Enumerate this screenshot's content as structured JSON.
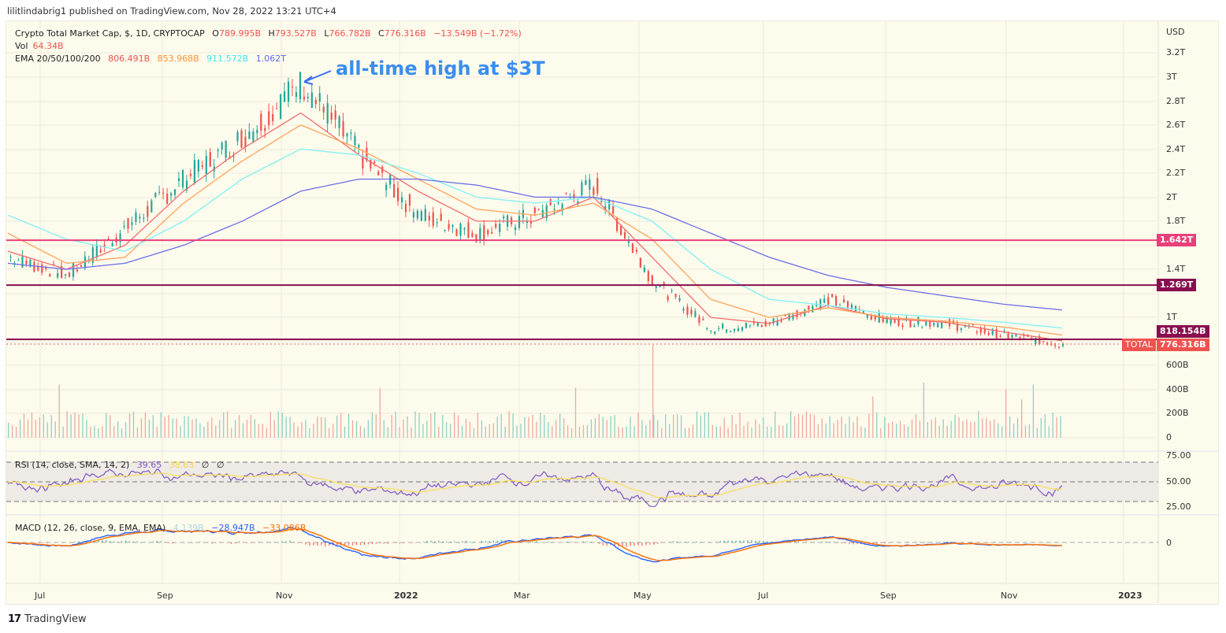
{
  "publish_line": "lilitlindabrig1 published on TradingView.com, Nov 28, 2022 13:21 UTC+4",
  "legend": {
    "symbol": "Crypto Total Market Cap, $, 1D, CRYPTOCAP",
    "open_label": "O",
    "open": "789.995B",
    "high_label": "H",
    "high": "793.527B",
    "low_label": "L",
    "low": "766.782B",
    "close_label": "C",
    "close": "776.316B",
    "change": "−13.549B (−1.72%)",
    "vol_label": "Vol",
    "vol": "64.34B",
    "ema_label": "EMA 20/50/100/200",
    "ema20": "806.491B",
    "ema50": "853.968B",
    "ema100": "911.572B",
    "ema200": "1.062T"
  },
  "rsi_legend": {
    "label": "RSI (14, close, SMA, 14, 2)",
    "rsi": "39.65",
    "sma": "38.63",
    "v3": "∅",
    "v4": "∅"
  },
  "macd_legend": {
    "label": "MACD (12, 26, close, 9, EMA, EMA)",
    "hist": "4.139B",
    "macd": "−28.947B",
    "signal": "−33.086B"
  },
  "annotation": "all-time high at $3T",
  "price_axis": {
    "currency": "USD",
    "ticks": [
      "3.2T",
      "3T",
      "2.8T",
      "2.6T",
      "2.4T",
      "2.2T",
      "2T",
      "1.8T",
      "1.4T",
      "1T",
      "600B",
      "400B",
      "200B",
      "0"
    ]
  },
  "rsi_axis": [
    "75.00",
    "50.00",
    "25.00"
  ],
  "macd_axis": [
    "0"
  ],
  "time_axis": [
    "Jul",
    "Sep",
    "Nov",
    "2022",
    "Mar",
    "May",
    "Jul",
    "Sep",
    "Nov",
    "2023"
  ],
  "price_tags": {
    "level1": "1.642T",
    "level2": "1.269T",
    "level3": "818.154B",
    "symbol_tag": "TOTAL",
    "last": "776.316B"
  },
  "colors": {
    "up": "#26a69a",
    "down": "#ef5350",
    "ema20": "#f26b6b",
    "ema50": "#ffa25a",
    "ema100": "#7ff0f5",
    "ema200": "#6a6ee8",
    "level_pink": "#e8407a",
    "level_maroon": "#880e4f",
    "rsi": "#7e57c2",
    "rsi_sma": "#f9e05a",
    "macd": "#2962ff",
    "signal": "#ff6d00"
  },
  "footer": {
    "brand": "TradingView"
  },
  "chart_data": {
    "type": "line",
    "title": "Crypto Total Market Cap, $, 1D, CRYPTOCAP",
    "xlabel": "",
    "ylabel": "USD",
    "ylim": [
      0,
      3200
    ],
    "y_unit": "billions USD",
    "x": [
      "2021-06",
      "2021-07",
      "2021-08",
      "2021-09",
      "2021-10",
      "2021-11",
      "2021-12",
      "2022-01",
      "2022-02",
      "2022-03",
      "2022-04",
      "2022-05",
      "2022-06",
      "2022-07",
      "2022-08",
      "2022-09",
      "2022-10",
      "2022-11",
      "2022-11-28"
    ],
    "series": [
      {
        "name": "Total Market Cap (close, approx)",
        "values": [
          1500,
          1350,
          1750,
          2150,
          2500,
          2950,
          2350,
          1850,
          1700,
          1850,
          2100,
          1300,
          900,
          950,
          1150,
          970,
          950,
          850,
          776
        ]
      },
      {
        "name": "EMA 20",
        "values": [
          1550,
          1400,
          1600,
          2050,
          2400,
          2700,
          2350,
          2050,
          1800,
          1800,
          2000,
          1500,
          1000,
          950,
          1100,
          990,
          960,
          880,
          806
        ]
      },
      {
        "name": "EMA 50",
        "values": [
          1700,
          1450,
          1500,
          1950,
          2300,
          2600,
          2400,
          2150,
          1900,
          1850,
          1950,
          1650,
          1150,
          1000,
          1080,
          1000,
          970,
          920,
          854
        ]
      },
      {
        "name": "EMA 100",
        "values": [
          1850,
          1650,
          1550,
          1800,
          2150,
          2400,
          2350,
          2200,
          2000,
          1950,
          2000,
          1800,
          1400,
          1150,
          1100,
          1030,
          1000,
          960,
          912
        ]
      },
      {
        "name": "EMA 200",
        "values": [
          1450,
          1400,
          1450,
          1600,
          1800,
          2050,
          2150,
          2150,
          2100,
          2000,
          2000,
          1900,
          1700,
          1500,
          1350,
          1250,
          1180,
          1110,
          1062
        ]
      }
    ],
    "horizontal_levels": [
      1642,
      1269,
      818.154
    ],
    "annotations": [
      {
        "text": "all-time high at $3T",
        "x": "2021-11",
        "y": 3000
      }
    ],
    "volume_axis": [
      "600B",
      "400B",
      "200B",
      "0"
    ],
    "rsi": {
      "params": "14, close, SMA, 14, 2",
      "last": 39.65,
      "sma_last": 38.63,
      "bands": [
        70,
        50,
        30
      ],
      "axis": [
        75,
        50,
        25
      ]
    },
    "macd": {
      "params": "12, 26, close, 9, EMA, EMA",
      "histogram": "4.139B",
      "macd": "-28.947B",
      "signal": "-33.086B"
    }
  }
}
